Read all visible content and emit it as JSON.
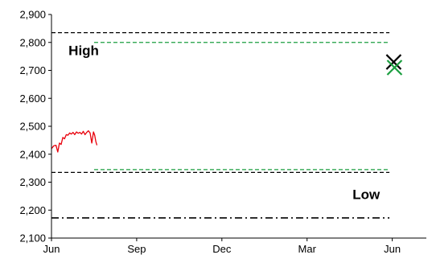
{
  "chart_data": {
    "type": "line",
    "title": "",
    "xlabel": "",
    "ylabel": "",
    "ylim": [
      2100,
      2900
    ],
    "xlim": [
      0,
      13.2
    ],
    "yticks": [
      2100,
      2200,
      2300,
      2400,
      2500,
      2600,
      2700,
      2800,
      2900
    ],
    "ytick_labels": [
      "2,100",
      "2,200",
      "2,300",
      "2,400",
      "2,500",
      "2,600",
      "2,700",
      "2,800",
      "2,900"
    ],
    "xticks": [
      {
        "label": "Jun",
        "x": 0
      },
      {
        "label": "Sep",
        "x": 3
      },
      {
        "label": "Dec",
        "x": 6
      },
      {
        "label": "Mar",
        "x": 9
      },
      {
        "label": "Jun",
        "x": 12
      }
    ],
    "grid": false,
    "colors": {
      "price": "#e8000b",
      "green": "#1a9e3f",
      "black": "#000000"
    },
    "price_series": {
      "x": [
        0,
        0.08,
        0.16,
        0.22,
        0.28,
        0.34,
        0.4,
        0.46,
        0.52,
        0.58,
        0.64,
        0.7,
        0.76,
        0.82,
        0.88,
        0.94,
        1.0,
        1.06,
        1.12,
        1.18,
        1.24,
        1.3,
        1.36,
        1.42,
        1.48,
        1.52,
        1.56,
        1.6
      ],
      "y": [
        2420,
        2430,
        2432,
        2408,
        2440,
        2435,
        2460,
        2455,
        2470,
        2468,
        2476,
        2472,
        2478,
        2470,
        2480,
        2475,
        2478,
        2472,
        2482,
        2470,
        2478,
        2484,
        2476,
        2440,
        2480,
        2468,
        2446,
        2432
      ]
    },
    "lines": [
      {
        "style": "dashed",
        "color": "black",
        "y": 2835,
        "x": [
          0,
          11.9
        ]
      },
      {
        "style": "dashed",
        "color": "green",
        "y": 2800,
        "x": [
          1.5,
          11.9
        ]
      },
      {
        "style": "dashed",
        "color": "green",
        "y": 2345,
        "x": [
          1.5,
          11.9
        ]
      },
      {
        "style": "dashed",
        "color": "black",
        "y": 2335,
        "x": [
          0,
          11.9
        ]
      },
      {
        "style": "dashdot",
        "color": "black",
        "y": 2172,
        "x": [
          0,
          11.9
        ]
      }
    ],
    "markers": [
      {
        "shape": "x",
        "color": "black",
        "x": 12.05,
        "y": 2730
      },
      {
        "shape": "x",
        "color": "green",
        "x": 12.08,
        "y": 2710
      }
    ],
    "annotations": [
      {
        "text": "High",
        "x": 0.6,
        "y": 2755
      },
      {
        "text": "Low",
        "x": 10.6,
        "y": 2240
      }
    ]
  }
}
